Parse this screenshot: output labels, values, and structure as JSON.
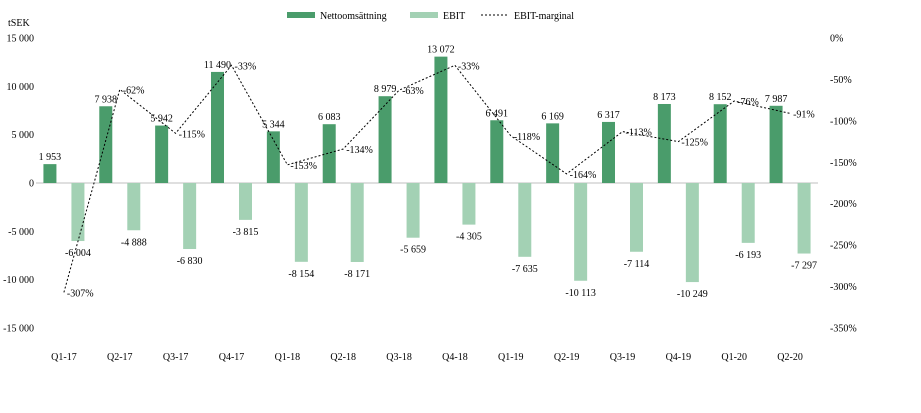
{
  "colors": {
    "net": "#4a9c6b",
    "ebit": "#a3d1b4",
    "margin": "#000000"
  },
  "chart_data": {
    "type": "bar",
    "ylabel": "tSEK",
    "categories": [
      "Q1-17",
      "Q2-17",
      "Q3-17",
      "Q4-17",
      "Q1-18",
      "Q2-18",
      "Q3-18",
      "Q4-18",
      "Q1-19",
      "Q2-19",
      "Q3-19",
      "Q4-19",
      "Q1-20",
      "Q2-20"
    ],
    "ylim": [
      -15000,
      15000
    ],
    "yticks": [
      -15000,
      -10000,
      -5000,
      0,
      5000,
      10000,
      15000
    ],
    "ytick_labels": [
      "-15 000",
      "-10 000",
      "-5 000",
      "0",
      "5 000",
      "10 000",
      "15 000"
    ],
    "y2lim": [
      -350,
      0
    ],
    "y2ticks": [
      -350,
      -300,
      -250,
      -200,
      -150,
      -100,
      -50,
      0
    ],
    "y2tick_labels": [
      "-350%",
      "-300%",
      "-250%",
      "-200%",
      "-150%",
      "-100%",
      "-50%",
      "0%"
    ],
    "legend_position": "top-center",
    "series": [
      {
        "name": "Nettoomsättning",
        "kind": "bar",
        "values": [
          1953,
          7938,
          5942,
          11490,
          5344,
          6083,
          8979,
          13072,
          6491,
          6169,
          6317,
          8173,
          8152,
          7987
        ],
        "labels": [
          "1 953",
          "7 938",
          "5 942",
          "11 490",
          "5 344",
          "6 083",
          "8 979",
          "13 072",
          "6 491",
          "6 169",
          "6 317",
          "8 173",
          "8 152",
          "7 987"
        ]
      },
      {
        "name": "EBIT",
        "kind": "bar",
        "values": [
          -6004,
          -4888,
          -6830,
          -3815,
          -8154,
          -8171,
          -5659,
          -4305,
          -7635,
          -10113,
          -7114,
          -10249,
          -6193,
          -7297
        ],
        "labels": [
          "-6 004",
          "-4 888",
          "-6 830",
          "-3 815",
          "-8 154",
          "-8 171",
          "-5 659",
          "-4 305",
          "-7 635",
          "-10 113",
          "-7 114",
          "-10 249",
          "-6 193",
          "-7 297"
        ]
      },
      {
        "name": "EBIT-marginal",
        "kind": "line",
        "axis": "secondary",
        "values": [
          -307,
          -62,
          -115,
          -33,
          -153,
          -134,
          -63,
          -33,
          -118,
          -164,
          -113,
          -125,
          -76,
          -91
        ],
        "labels": [
          "-307%",
          "-62%",
          "-115%",
          "-33%",
          "-153%",
          "-134%",
          "-63%",
          "-33%",
          "-118%",
          "-164%",
          "-113%",
          "-125%",
          "-76%",
          "-91%"
        ]
      }
    ]
  }
}
